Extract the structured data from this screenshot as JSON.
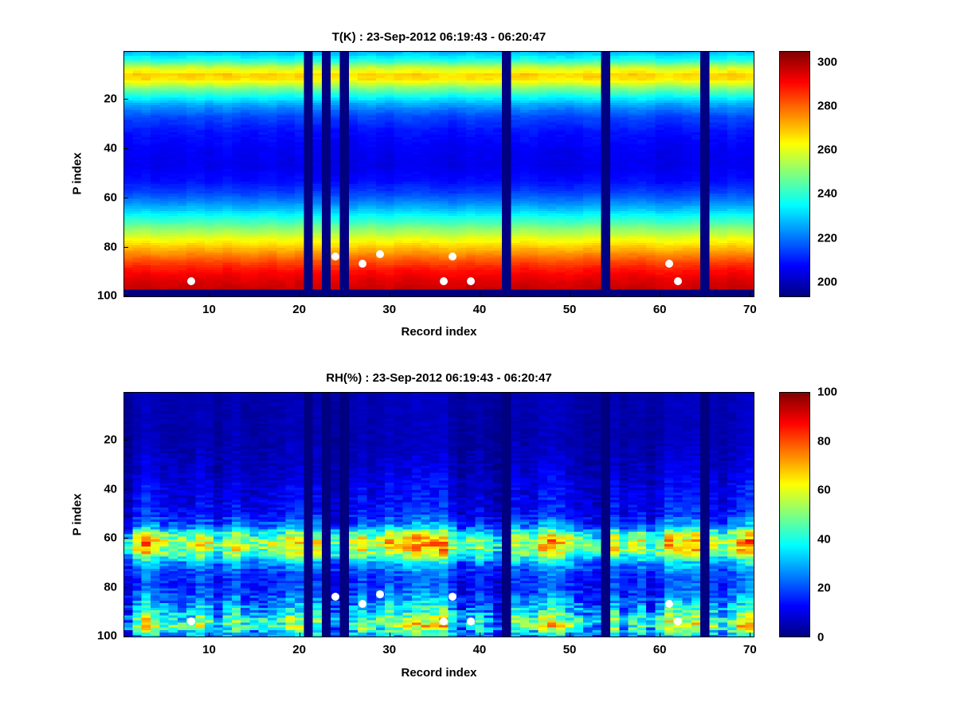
{
  "figure": {
    "background_color": "#ffffff",
    "text_color": "#000000"
  },
  "chart_data": [
    {
      "type": "heatmap",
      "title": "T(K) : 23-Sep-2012 06:19:43 - 06:20:47",
      "xlabel": "Record index",
      "ylabel": "P index",
      "colormap": "jet",
      "grid": false,
      "legend": false,
      "n_cols": 70,
      "n_rows": 100,
      "x_range": [
        0.5,
        70.5
      ],
      "y_range": [
        0.5,
        100.5
      ],
      "y_axis_reversed": true,
      "x_ticks": [
        10,
        20,
        30,
        40,
        50,
        60,
        70
      ],
      "y_ticks": [
        20,
        40,
        60,
        80,
        100
      ],
      "colorbar": {
        "min": 193,
        "max": 305,
        "ticks": [
          200,
          220,
          240,
          260,
          280,
          300
        ]
      },
      "profile": [
        [
          1,
          227
        ],
        [
          4,
          238
        ],
        [
          7,
          255
        ],
        [
          10,
          268
        ],
        [
          12,
          266
        ],
        [
          15,
          252
        ],
        [
          18,
          240
        ],
        [
          22,
          226
        ],
        [
          27,
          215
        ],
        [
          33,
          209
        ],
        [
          40,
          206
        ],
        [
          47,
          205
        ],
        [
          53,
          208
        ],
        [
          58,
          214
        ],
        [
          63,
          224
        ],
        [
          68,
          237
        ],
        [
          73,
          251
        ],
        [
          78,
          264
        ],
        [
          83,
          276
        ],
        [
          88,
          287
        ],
        [
          93,
          294
        ],
        [
          97,
          297
        ],
        [
          100,
          298
        ]
      ],
      "noise_amplitude": [
        [
          1,
          3
        ],
        [
          10,
          3
        ],
        [
          20,
          2.5
        ],
        [
          50,
          2
        ],
        [
          75,
          2
        ],
        [
          100,
          2
        ]
      ],
      "noise_seed": 42,
      "missing_records": [
        21,
        23,
        25,
        43,
        54,
        65
      ],
      "missing_rows": [
        98,
        99,
        100
      ],
      "markers": [
        [
          8,
          94
        ],
        [
          24,
          84
        ],
        [
          27,
          87
        ],
        [
          29,
          83
        ],
        [
          36,
          94
        ],
        [
          37,
          84
        ],
        [
          39,
          94
        ],
        [
          61,
          87
        ],
        [
          62,
          94
        ]
      ],
      "marker_color": "#ffffff"
    },
    {
      "type": "heatmap",
      "title": "RH(%) : 23-Sep-2012 06:19:43 - 06:20:47",
      "xlabel": "Record index",
      "ylabel": "P index",
      "colormap": "jet",
      "grid": false,
      "legend": false,
      "n_cols": 70,
      "n_rows": 100,
      "x_range": [
        0.5,
        70.5
      ],
      "y_range": [
        0.5,
        100.5
      ],
      "y_axis_reversed": true,
      "x_ticks": [
        10,
        20,
        30,
        40,
        50,
        60,
        70
      ],
      "y_ticks": [
        20,
        40,
        60,
        80,
        100
      ],
      "colorbar": {
        "min": 0,
        "max": 100,
        "ticks": [
          0,
          20,
          40,
          60,
          80,
          100
        ]
      },
      "profile": [
        [
          1,
          5
        ],
        [
          20,
          5
        ],
        [
          30,
          7
        ],
        [
          38,
          10
        ],
        [
          45,
          12
        ],
        [
          50,
          14
        ],
        [
          55,
          24
        ],
        [
          58,
          45
        ],
        [
          61,
          58
        ],
        [
          64,
          58
        ],
        [
          67,
          48
        ],
        [
          70,
          30
        ],
        [
          74,
          20
        ],
        [
          78,
          17
        ],
        [
          82,
          20
        ],
        [
          86,
          26
        ],
        [
          90,
          34
        ],
        [
          93,
          44
        ],
        [
          96,
          48
        ],
        [
          100,
          28
        ]
      ],
      "noise_amplitude": [
        [
          1,
          3
        ],
        [
          20,
          4
        ],
        [
          30,
          6
        ],
        [
          40,
          8
        ],
        [
          50,
          10
        ],
        [
          55,
          16
        ],
        [
          58,
          23
        ],
        [
          61,
          25
        ],
        [
          64,
          25
        ],
        [
          67,
          22
        ],
        [
          70,
          15
        ],
        [
          75,
          10
        ],
        [
          80,
          12
        ],
        [
          85,
          16
        ],
        [
          90,
          24
        ],
        [
          94,
          28
        ],
        [
          97,
          30
        ],
        [
          100,
          18
        ]
      ],
      "noise_seed": 7,
      "missing_records": [
        21,
        23,
        25,
        43,
        54,
        65
      ],
      "missing_rows": [],
      "markers": [
        [
          8,
          94
        ],
        [
          24,
          84
        ],
        [
          27,
          87
        ],
        [
          29,
          83
        ],
        [
          36,
          94
        ],
        [
          37,
          84
        ],
        [
          39,
          94
        ],
        [
          61,
          87
        ],
        [
          62,
          94
        ]
      ],
      "marker_color": "#ffffff"
    }
  ]
}
